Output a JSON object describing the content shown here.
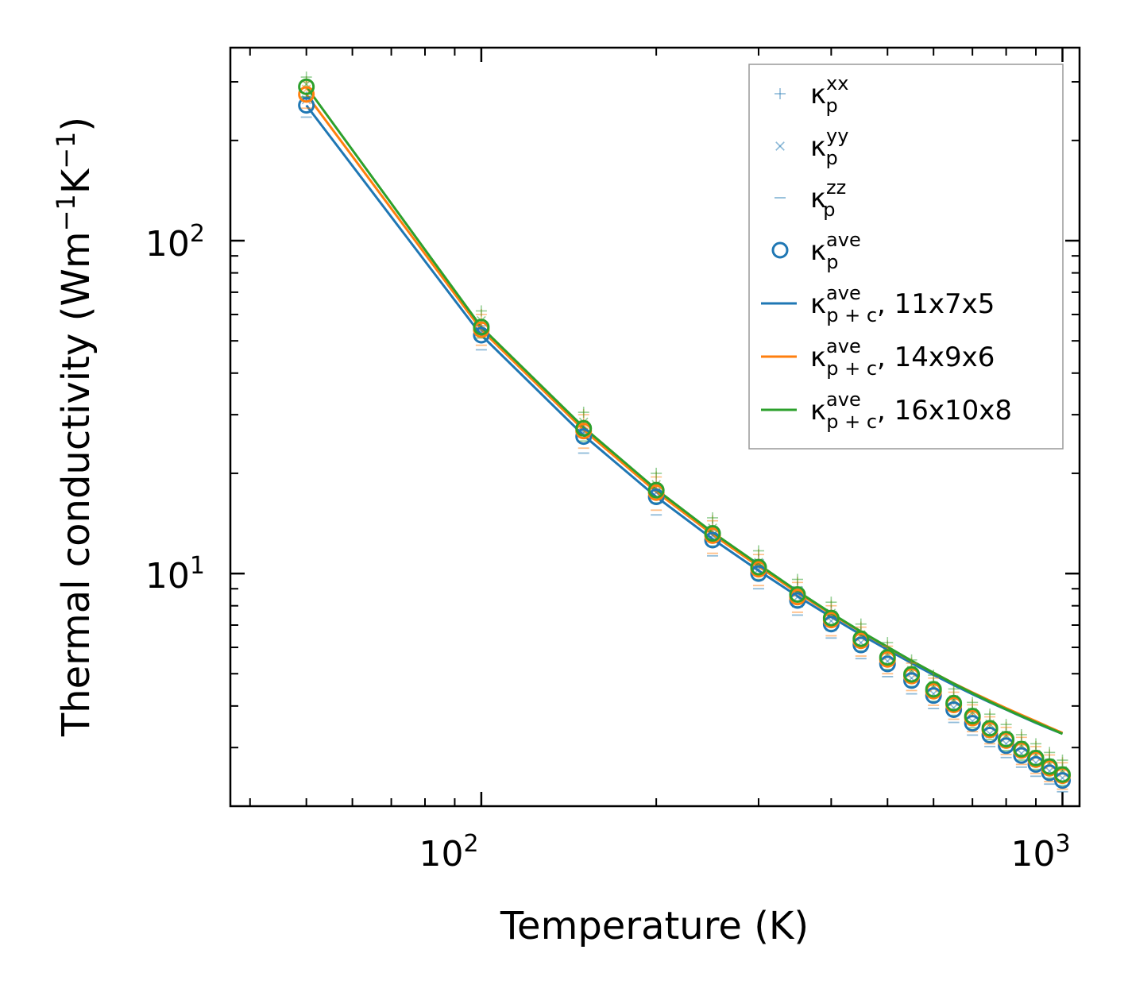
{
  "chart_data": {
    "type": "scatter",
    "title": "",
    "xlabel": "Temperature (K)",
    "ylabel": {
      "base": "Thermal conductivity (Wm",
      "sup1": "−1",
      "mid": "K",
      "sup2": "−1",
      "end": ")"
    },
    "xscale": "log",
    "yscale": "log",
    "xlim": [
      37,
      1070
    ],
    "ylim": [
      2.0,
      380
    ],
    "x_ticks": [
      {
        "value": 100,
        "base": "10",
        "exp": "2"
      },
      {
        "value": 1000,
        "base": "10",
        "exp": "3"
      }
    ],
    "y_ticks": [
      {
        "value": 10,
        "base": "10",
        "exp": "1"
      },
      {
        "value": 100,
        "base": "10",
        "exp": "2"
      }
    ],
    "legend_position": "top-right",
    "temperatures": [
      50,
      100,
      150,
      200,
      250,
      300,
      350,
      400,
      450,
      500,
      550,
      600,
      650,
      700,
      750,
      800,
      850,
      900,
      950,
      1000
    ],
    "grids": [
      {
        "name": "11x7x5",
        "color": "#1f77b4",
        "kappa_xx": [
          270,
          55.5,
          28.0,
          18.5,
          13.8,
          11.0,
          9.1,
          7.7,
          6.6,
          5.8,
          5.15,
          4.65,
          4.2,
          3.85,
          3.55,
          3.3,
          3.1,
          2.9,
          2.75,
          2.6
        ],
        "kappa_yy": [
          265,
          53.0,
          26.5,
          17.5,
          13.0,
          10.3,
          8.5,
          7.2,
          6.2,
          5.45,
          4.85,
          4.35,
          3.95,
          3.6,
          3.3,
          3.08,
          2.88,
          2.7,
          2.55,
          2.43
        ],
        "kappa_zz": [
          235,
          47.0,
          23.0,
          15.0,
          11.3,
          9.0,
          7.5,
          6.4,
          5.55,
          4.9,
          4.35,
          3.93,
          3.57,
          3.27,
          3.02,
          2.8,
          2.62,
          2.46,
          2.33,
          2.21
        ],
        "kappa_ave": [
          255,
          52.0,
          25.8,
          17.0,
          12.6,
          10.0,
          8.3,
          7.05,
          6.1,
          5.35,
          4.77,
          4.3,
          3.9,
          3.55,
          3.27,
          3.04,
          2.84,
          2.67,
          2.52,
          2.39
        ],
        "kappa_p_c_ave": [
          255,
          52.0,
          26.0,
          17.0,
          12.7,
          10.2,
          8.55,
          7.4,
          6.55,
          5.9,
          5.38,
          4.96,
          4.62,
          4.34,
          4.1,
          3.9,
          3.72,
          3.56,
          3.42,
          3.3
        ]
      },
      {
        "name": "14x9x6",
        "color": "#ff7f0e",
        "kappa_xx": [
          300,
          60.0,
          30.0,
          19.5,
          14.4,
          11.4,
          9.4,
          8.0,
          6.9,
          6.05,
          5.38,
          4.85,
          4.4,
          4.03,
          3.71,
          3.45,
          3.22,
          3.02,
          2.85,
          2.7
        ],
        "kappa_yy": [
          285,
          56.0,
          28.0,
          18.2,
          13.4,
          10.6,
          8.75,
          7.45,
          6.45,
          5.65,
          5.03,
          4.53,
          4.12,
          3.77,
          3.47,
          3.22,
          3.01,
          2.82,
          2.66,
          2.52
        ],
        "kappa_zz": [
          250,
          48.5,
          23.8,
          15.5,
          11.5,
          9.2,
          7.65,
          6.5,
          5.65,
          5.0,
          4.45,
          4.02,
          3.65,
          3.35,
          3.08,
          2.86,
          2.67,
          2.51,
          2.37,
          2.25
        ],
        "kappa_ave": [
          275,
          54.0,
          26.8,
          17.5,
          13.0,
          10.3,
          8.5,
          7.25,
          6.28,
          5.52,
          4.92,
          4.43,
          4.03,
          3.68,
          3.39,
          3.15,
          2.94,
          2.76,
          2.6,
          2.47
        ],
        "kappa_p_c_ave": [
          275,
          54.0,
          27.0,
          17.6,
          13.1,
          10.5,
          8.75,
          7.55,
          6.68,
          6.0,
          5.46,
          5.03,
          4.68,
          4.39,
          4.15,
          3.94,
          3.76,
          3.6,
          3.45,
          3.32
        ]
      },
      {
        "name": "16x10x8",
        "color": "#2ca02c",
        "kappa_xx": [
          310,
          61.5,
          30.5,
          20.0,
          14.7,
          11.7,
          9.6,
          8.2,
          7.05,
          6.2,
          5.5,
          4.95,
          4.5,
          4.1,
          3.78,
          3.52,
          3.28,
          3.08,
          2.9,
          2.75
        ],
        "kappa_yy": [
          295,
          57.5,
          28.5,
          18.5,
          13.7,
          10.8,
          8.9,
          7.6,
          6.55,
          5.75,
          5.12,
          4.6,
          4.18,
          3.83,
          3.53,
          3.27,
          3.05,
          2.86,
          2.7,
          2.56
        ],
        "kappa_zz": [
          270,
          51.0,
          25.0,
          16.3,
          12.1,
          9.6,
          7.95,
          6.75,
          5.85,
          5.15,
          4.58,
          4.13,
          3.75,
          3.44,
          3.17,
          2.94,
          2.75,
          2.58,
          2.43,
          2.31
        ],
        "kappa_ave": [
          290,
          55.0,
          27.3,
          17.8,
          13.2,
          10.45,
          8.65,
          7.35,
          6.37,
          5.6,
          4.98,
          4.49,
          4.08,
          3.73,
          3.43,
          3.18,
          2.97,
          2.79,
          2.63,
          2.49
        ],
        "kappa_p_c_ave": [
          290,
          55.0,
          27.5,
          17.9,
          13.3,
          10.65,
          8.85,
          7.6,
          6.7,
          6.02,
          5.47,
          5.03,
          4.67,
          4.37,
          4.12,
          3.91,
          3.73,
          3.57,
          3.43,
          3.3
        ]
      }
    ],
    "legend": [
      {
        "marker": "plus",
        "kappa": "κ",
        "sub": "p",
        "sup": "xx",
        "suffix": "",
        "color": "#1f77b4"
      },
      {
        "marker": "x",
        "kappa": "κ",
        "sub": "p",
        "sup": "yy",
        "suffix": "",
        "color": "#1f77b4"
      },
      {
        "marker": "dash",
        "kappa": "κ",
        "sub": "p",
        "sup": "zz",
        "suffix": "",
        "color": "#1f77b4"
      },
      {
        "marker": "circle",
        "kappa": "κ",
        "sub": "p",
        "sup": "ave",
        "suffix": "",
        "color": "#1f77b4"
      },
      {
        "marker": "line",
        "kappa": "κ",
        "sub": "p + c",
        "sup": "ave",
        "suffix": ", 11x7x5",
        "color": "#1f77b4"
      },
      {
        "marker": "line",
        "kappa": "κ",
        "sub": "p + c",
        "sup": "ave",
        "suffix": ", 14x9x6",
        "color": "#ff7f0e"
      },
      {
        "marker": "line",
        "kappa": "κ",
        "sub": "p + c",
        "sup": "ave",
        "suffix": ", 16x10x8",
        "color": "#2ca02c"
      }
    ]
  }
}
